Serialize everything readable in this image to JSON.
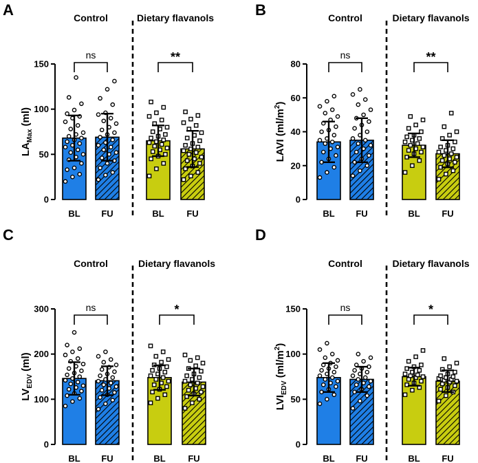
{
  "colors": {
    "control": "#1f7fe6",
    "flavanol": "#c8cd10",
    "ink": "#000000",
    "background": "#ffffff"
  },
  "chart_data": [
    {
      "type": "bar",
      "panel": "A",
      "groups": [
        "Control",
        "Dietary flavanols"
      ],
      "categories": [
        "BL",
        "FU",
        "BL",
        "FU"
      ],
      "values": [
        68,
        69,
        65,
        56
      ],
      "sd": [
        25,
        26,
        17,
        20
      ],
      "ylim": [
        0,
        150
      ],
      "yticks": [
        0,
        50,
        100,
        150
      ],
      "ylabel": "LA",
      "ylabel_sub": "Max",
      "ylabel_unit": " (ml)",
      "significance": [
        "ns",
        "**"
      ],
      "points": [
        [
          20,
          25,
          28,
          33,
          35,
          40,
          44,
          47,
          50,
          52,
          55,
          58,
          60,
          62,
          64,
          66,
          68,
          70,
          72,
          74,
          78,
          82,
          86,
          90,
          92,
          95,
          99,
          106,
          113,
          135
        ],
        [
          22,
          27,
          30,
          35,
          40,
          43,
          46,
          50,
          52,
          55,
          58,
          60,
          63,
          66,
          69,
          72,
          74,
          77,
          80,
          84,
          87,
          90,
          94,
          96,
          105,
          112,
          122,
          131
        ],
        [
          26,
          34,
          40,
          45,
          48,
          50,
          53,
          55,
          57,
          59,
          61,
          63,
          64,
          66,
          68,
          70,
          72,
          75,
          78,
          80,
          84,
          88,
          92,
          96,
          102,
          108
        ],
        [
          22,
          26,
          30,
          34,
          37,
          40,
          43,
          45,
          47,
          50,
          52,
          54,
          56,
          58,
          60,
          62,
          65,
          68,
          71,
          74,
          78,
          82,
          85,
          89,
          93,
          97
        ]
      ]
    },
    {
      "type": "bar",
      "panel": "B",
      "groups": [
        "Control",
        "Dietary flavanols"
      ],
      "categories": [
        "BL",
        "FU",
        "BL",
        "FU"
      ],
      "values": [
        34,
        35,
        32,
        27
      ],
      "sd": [
        12,
        13,
        7,
        8
      ],
      "ylim": [
        0,
        80
      ],
      "yticks": [
        0,
        20,
        40,
        60,
        80
      ],
      "ylabel": "LAVI (ml/m",
      "ylabel_sup": "2",
      "ylabel_unit": ")",
      "significance": [
        "ns",
        "**"
      ],
      "points": [
        [
          13,
          16,
          19,
          22,
          24,
          26,
          28,
          30,
          31,
          33,
          34,
          35,
          36,
          38,
          40,
          41,
          43,
          45,
          47,
          49,
          51,
          53,
          55,
          58,
          61
        ],
        [
          14,
          17,
          20,
          22,
          24,
          26,
          28,
          30,
          32,
          33,
          35,
          36,
          38,
          40,
          42,
          44,
          46,
          48,
          50,
          53,
          56,
          59,
          62,
          65
        ],
        [
          16,
          20,
          23,
          25,
          27,
          28,
          29,
          30,
          31,
          32,
          33,
          34,
          35,
          36,
          37,
          38,
          40,
          42,
          44,
          47,
          49
        ],
        [
          12,
          15,
          17,
          19,
          21,
          22,
          23,
          24,
          25,
          26,
          27,
          28,
          29,
          30,
          31,
          32,
          34,
          36,
          38,
          40,
          43,
          51
        ]
      ]
    },
    {
      "type": "bar",
      "panel": "C",
      "groups": [
        "Control",
        "Dietary flavanols"
      ],
      "categories": [
        "BL",
        "FU",
        "BL",
        "FU"
      ],
      "values": [
        146,
        141,
        148,
        138
      ],
      "sd": [
        36,
        32,
        27,
        30
      ],
      "ylim": [
        0,
        300
      ],
      "yticks": [
        0,
        100,
        200,
        300
      ],
      "ylabel": "LV",
      "ylabel_sub": "EDV",
      "ylabel_unit": " (ml)",
      "significance": [
        "ns",
        "*"
      ],
      "points": [
        [
          85,
          95,
          102,
          108,
          113,
          118,
          122,
          126,
          130,
          134,
          138,
          142,
          146,
          150,
          154,
          158,
          163,
          168,
          173,
          178,
          184,
          190,
          198,
          205,
          212,
          220,
          248
        ],
        [
          78,
          90,
          98,
          104,
          110,
          115,
          120,
          124,
          128,
          132,
          136,
          140,
          144,
          148,
          152,
          156,
          161,
          166,
          171,
          176,
          182,
          188,
          195,
          205
        ],
        [
          92,
          102,
          110,
          116,
          122,
          128,
          132,
          136,
          140,
          144,
          148,
          152,
          156,
          160,
          164,
          168,
          172,
          176,
          182,
          188,
          195,
          205,
          218
        ],
        [
          80,
          92,
          100,
          106,
          112,
          116,
          120,
          124,
          128,
          132,
          136,
          140,
          144,
          148,
          152,
          156,
          162,
          168,
          174,
          180,
          186,
          192,
          198
        ]
      ]
    },
    {
      "type": "bar",
      "panel": "D",
      "groups": [
        "Control",
        "Dietary flavanols"
      ],
      "categories": [
        "BL",
        "FU",
        "BL",
        "FU"
      ],
      "values": [
        74,
        72,
        75,
        70
      ],
      "sd": [
        16,
        14,
        10,
        12
      ],
      "ylim": [
        0,
        150
      ],
      "yticks": [
        0,
        50,
        100,
        150
      ],
      "ylabel": "LVI",
      "ylabel_sub": "EDV",
      "ylabel_unit": " (ml/m",
      "ylabel_sup": "2",
      "ylabel_unit2": ")",
      "significance": [
        "ns",
        "*"
      ],
      "points": [
        [
          45,
          50,
          55,
          58,
          61,
          64,
          66,
          68,
          70,
          72,
          74,
          76,
          78,
          80,
          82,
          84,
          86,
          88,
          90,
          93,
          96,
          100,
          105,
          112
        ],
        [
          40,
          48,
          54,
          58,
          61,
          64,
          66,
          68,
          70,
          72,
          74,
          76,
          78,
          80,
          82,
          84,
          86,
          88,
          92,
          96,
          100
        ],
        [
          55,
          60,
          63,
          66,
          68,
          70,
          72,
          74,
          75,
          76,
          77,
          78,
          80,
          82,
          84,
          86,
          88,
          92,
          97,
          104
        ],
        [
          48,
          54,
          58,
          61,
          63,
          65,
          67,
          69,
          70,
          71,
          72,
          73,
          74,
          75,
          76,
          78,
          80,
          83,
          86,
          90,
          95
        ]
      ]
    }
  ]
}
